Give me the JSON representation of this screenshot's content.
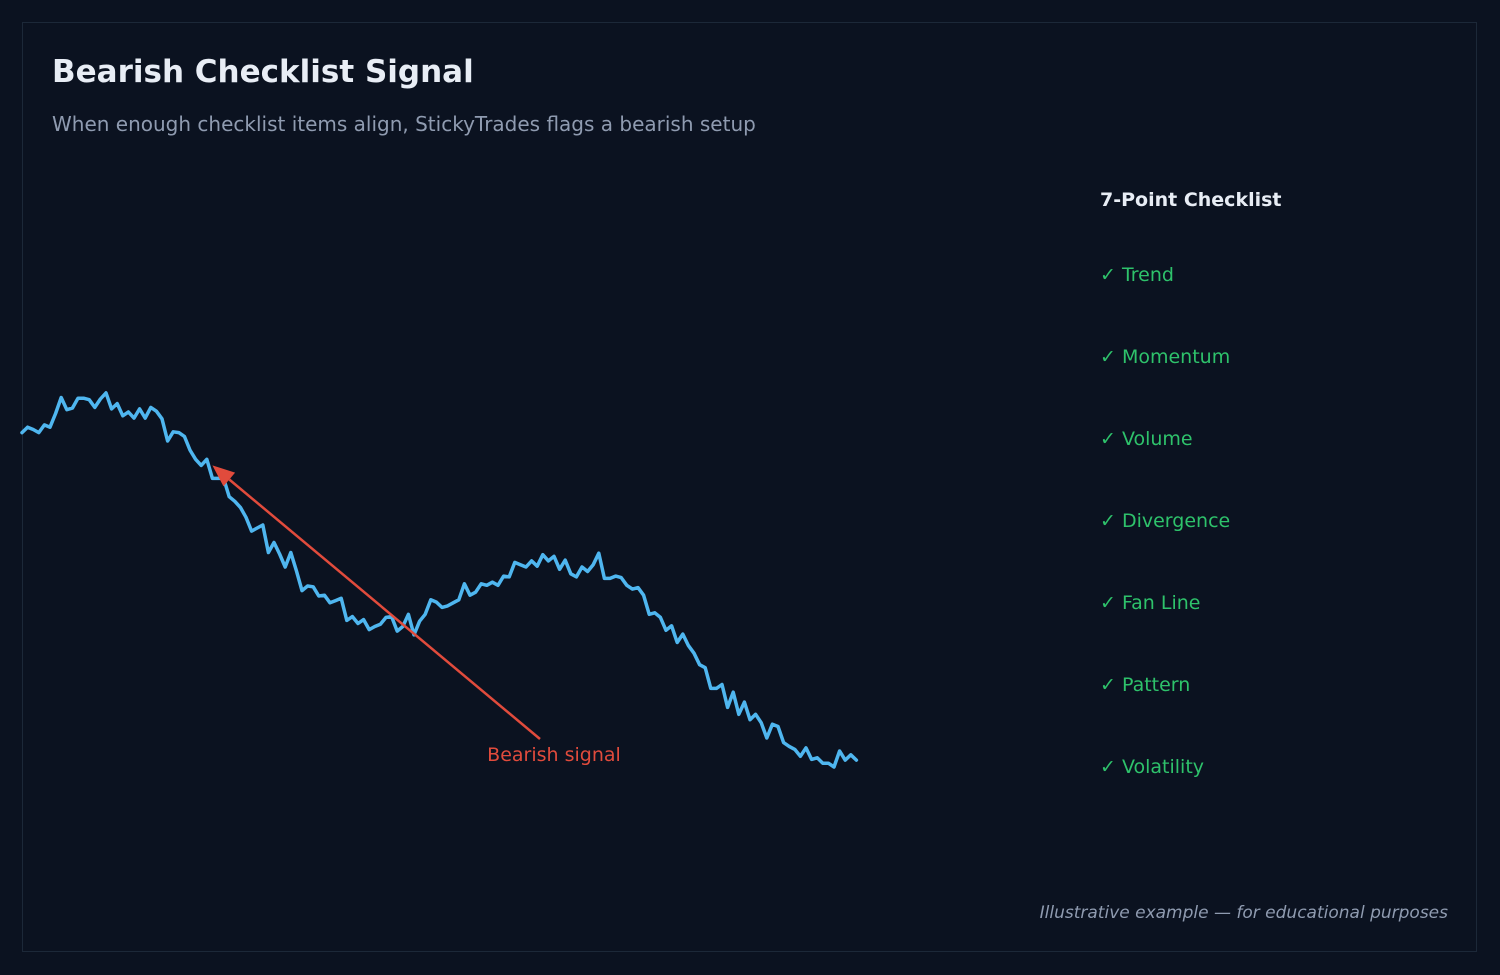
{
  "title": "Bearish Checklist Signal",
  "subtitle": "When enough checklist items align, StickyTrades flags a bearish setup",
  "checklist": {
    "title": "7-Point Checklist",
    "items": [
      "✓ Trend",
      "✓ Momentum",
      "✓ Volume",
      "✓ Divergence",
      "✓ Fan Line",
      "✓ Pattern",
      "✓ Volatility"
    ]
  },
  "footnote": "Illustrative example — for educational purposes",
  "colors": {
    "background": "#0b1220",
    "line": "#4fb6ef",
    "annotation": "#e14b3c",
    "check": "#2ec26b"
  },
  "chart_data": {
    "type": "line",
    "title": "Bearish Checklist Signal",
    "subtitle": "When enough checklist items align, StickyTrades flags a bearish setup",
    "xlabel": "",
    "ylabel": "",
    "grid": false,
    "axes_visible": false,
    "xlim": [
      0,
      180
    ],
    "ylim": [
      38,
      112
    ],
    "series": [
      {
        "values": [
          96.6,
          97.3,
          97.0,
          96.6,
          97.6,
          97.3,
          99.1,
          101.2,
          99.6,
          99.8,
          101.1,
          101.1,
          100.9,
          99.9,
          101.0,
          101.8,
          99.7,
          100.4,
          98.8,
          99.3,
          98.5,
          99.7,
          98.5,
          99.9,
          99.4,
          98.4,
          95.5,
          96.7,
          96.6,
          96.1,
          94.3,
          93.1,
          92.3,
          93.1,
          90.6,
          90.6,
          90.6,
          88.2,
          87.6,
          86.8,
          85.5,
          83.7,
          84.1,
          84.5,
          80.9,
          82.2,
          80.7,
          79.0,
          80.9,
          78.5,
          75.9,
          76.5,
          76.4,
          75.2,
          75.3,
          74.3,
          74.6,
          74.9,
          72.0,
          72.5,
          71.6,
          72.1,
          70.8,
          71.2,
          71.5,
          72.4,
          72.5,
          70.6,
          71.2,
          72.8,
          70.1,
          71.9,
          72.8,
          74.7,
          74.4,
          73.7,
          73.9,
          74.3,
          74.7,
          76.8,
          75.3,
          75.7,
          76.8,
          76.6,
          77.0,
          76.6,
          77.8,
          77.7,
          79.6,
          79.3,
          79.0,
          79.8,
          79.1,
          80.6,
          79.8,
          80.4,
          78.7,
          79.9,
          78.1,
          77.7,
          79.0,
          78.4,
          79.3,
          80.8,
          77.5,
          77.5,
          77.8,
          77.6,
          76.6,
          76.1,
          76.3,
          75.3,
          72.8,
          73.0,
          72.4,
          70.7,
          71.3,
          69.1,
          70.2,
          68.7,
          67.7,
          66.2,
          65.8,
          63.1,
          63.1,
          63.6,
          60.6,
          62.6,
          59.7,
          61.3,
          59.0,
          59.7,
          58.6,
          56.6,
          58.4,
          58.1,
          56.0,
          55.5,
          55.1,
          54.2,
          55.3,
          53.8,
          54.0,
          53.3,
          53.3,
          52.8,
          54.9,
          53.7,
          54.4,
          53.7
        ]
      }
    ],
    "annotations": [
      {
        "text": "Bearish signal",
        "x": 34,
        "y": 92.3,
        "text_x": 95,
        "text_y": 54.5,
        "color": "#e14b3c"
      }
    ]
  }
}
